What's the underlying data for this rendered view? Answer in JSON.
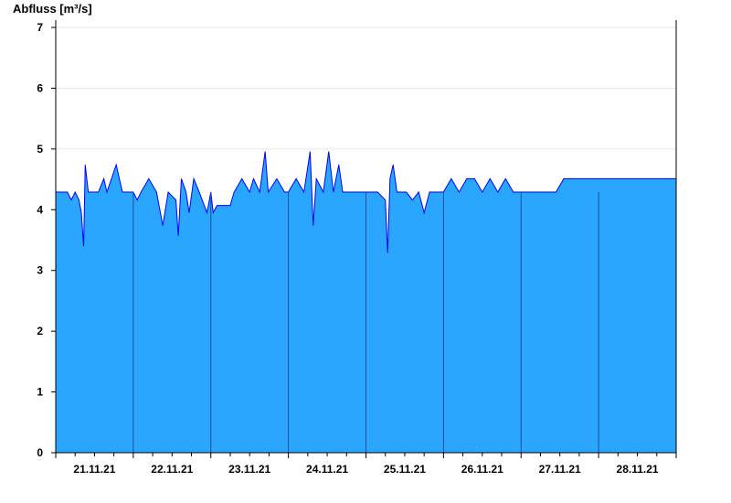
{
  "chart_data": {
    "type": "area",
    "ylabel": "Abfluss [m³/s]",
    "xlabel": "",
    "title": "",
    "ylim": [
      0,
      7
    ],
    "yticks": [
      0,
      1,
      2,
      3,
      4,
      5,
      6,
      7
    ],
    "x_range_days": [
      0,
      8.0
    ],
    "day_labels": [
      "21.11.21",
      "22.11.21",
      "23.11.21",
      "24.11.21",
      "25.11.21",
      "26.11.21",
      "27.11.21",
      "28.11.21"
    ],
    "grid": "horizontal",
    "fill_color": "#2aa6ff",
    "line_color": "#0000ff",
    "divider_color": "#1a4f9a",
    "series": [
      {
        "points": [
          [
            0.0,
            4.29
          ],
          [
            0.15,
            4.29
          ],
          [
            0.2,
            4.16
          ],
          [
            0.25,
            4.29
          ],
          [
            0.3,
            4.16
          ],
          [
            0.33,
            3.95
          ],
          [
            0.36,
            3.4
          ],
          [
            0.38,
            4.74
          ],
          [
            0.42,
            4.29
          ],
          [
            0.47,
            4.29
          ],
          [
            0.55,
            4.29
          ],
          [
            0.62,
            4.51
          ],
          [
            0.66,
            4.29
          ],
          [
            0.78,
            4.74
          ],
          [
            0.82,
            4.51
          ],
          [
            0.86,
            4.29
          ],
          [
            1.0,
            4.29
          ],
          [
            1.05,
            4.16
          ],
          [
            1.1,
            4.29
          ],
          [
            1.2,
            4.51
          ],
          [
            1.3,
            4.29
          ],
          [
            1.38,
            3.74
          ],
          [
            1.45,
            4.29
          ],
          [
            1.55,
            4.16
          ],
          [
            1.58,
            3.57
          ],
          [
            1.62,
            4.51
          ],
          [
            1.68,
            4.29
          ],
          [
            1.72,
            3.95
          ],
          [
            1.78,
            4.51
          ],
          [
            1.85,
            4.29
          ],
          [
            1.95,
            3.95
          ],
          [
            2.0,
            4.29
          ],
          [
            2.03,
            3.95
          ],
          [
            2.08,
            4.07
          ],
          [
            2.25,
            4.07
          ],
          [
            2.3,
            4.29
          ],
          [
            2.4,
            4.51
          ],
          [
            2.5,
            4.29
          ],
          [
            2.55,
            4.51
          ],
          [
            2.63,
            4.29
          ],
          [
            2.7,
            4.96
          ],
          [
            2.74,
            4.29
          ],
          [
            2.85,
            4.51
          ],
          [
            2.95,
            4.29
          ],
          [
            3.0,
            4.29
          ],
          [
            3.1,
            4.51
          ],
          [
            3.2,
            4.29
          ],
          [
            3.28,
            4.96
          ],
          [
            3.32,
            3.74
          ],
          [
            3.36,
            4.51
          ],
          [
            3.45,
            4.29
          ],
          [
            3.52,
            4.96
          ],
          [
            3.58,
            4.29
          ],
          [
            3.65,
            4.74
          ],
          [
            3.7,
            4.29
          ],
          [
            3.8,
            4.29
          ],
          [
            3.9,
            4.29
          ],
          [
            4.0,
            4.29
          ],
          [
            4.15,
            4.29
          ],
          [
            4.25,
            4.16
          ],
          [
            4.28,
            3.29
          ],
          [
            4.31,
            4.51
          ],
          [
            4.35,
            4.74
          ],
          [
            4.4,
            4.29
          ],
          [
            4.52,
            4.29
          ],
          [
            4.6,
            4.16
          ],
          [
            4.68,
            4.29
          ],
          [
            4.75,
            3.95
          ],
          [
            4.82,
            4.29
          ],
          [
            4.9,
            4.29
          ],
          [
            5.0,
            4.29
          ],
          [
            5.1,
            4.51
          ],
          [
            5.2,
            4.29
          ],
          [
            5.3,
            4.51
          ],
          [
            5.4,
            4.51
          ],
          [
            5.5,
            4.29
          ],
          [
            5.6,
            4.51
          ],
          [
            5.7,
            4.29
          ],
          [
            5.8,
            4.51
          ],
          [
            5.9,
            4.29
          ],
          [
            6.0,
            4.29
          ],
          [
            6.1,
            4.29
          ],
          [
            6.2,
            4.29
          ],
          [
            6.35,
            4.29
          ],
          [
            6.45,
            4.29
          ],
          [
            6.55,
            4.51
          ],
          [
            6.65,
            4.51
          ],
          [
            6.75,
            4.51
          ],
          [
            6.85,
            4.51
          ],
          [
            7.0,
            4.51
          ],
          [
            7.1,
            4.51
          ],
          [
            7.2,
            4.51
          ],
          [
            7.3,
            4.51
          ],
          [
            7.4,
            4.51
          ],
          [
            7.5,
            4.51
          ],
          [
            7.6,
            4.51
          ],
          [
            7.7,
            4.51
          ],
          [
            7.8,
            4.51
          ],
          [
            7.9,
            4.51
          ],
          [
            8.0,
            4.51
          ]
        ]
      }
    ]
  }
}
